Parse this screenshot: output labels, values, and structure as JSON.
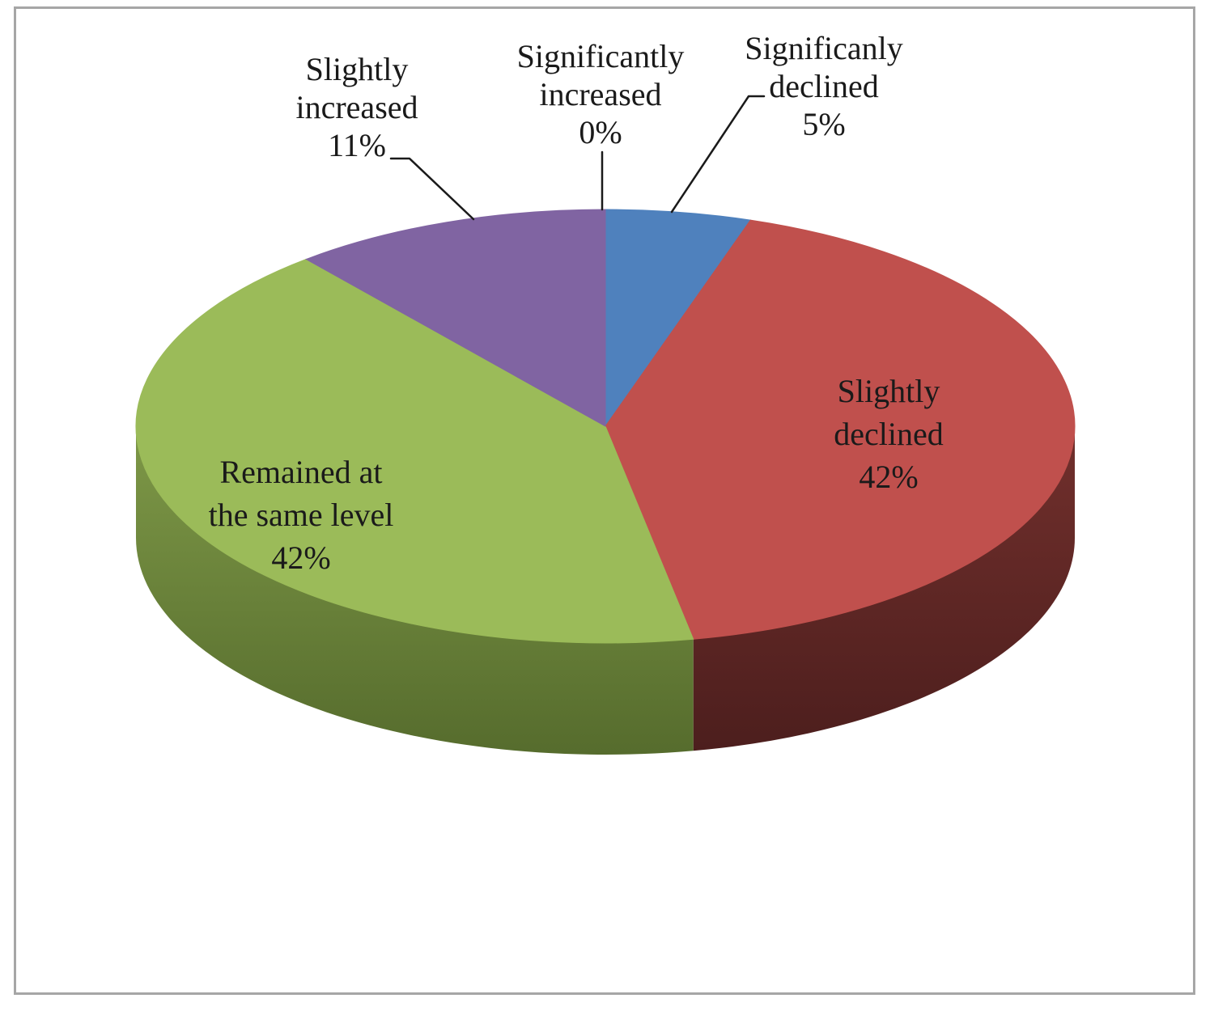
{
  "chart_data": {
    "type": "pie",
    "style": "3d",
    "title": "",
    "unit": "%",
    "direction": "clockwise",
    "start_angle_deg": 0,
    "legend": "none",
    "slices": [
      {
        "label": "Significanly declined",
        "value": 5,
        "color": "#4F81BD"
      },
      {
        "label": "Slightly declined",
        "value": 42,
        "color": "#C0504D",
        "side_gradient": [
          "#6E2E2B",
          "#4C1E1D"
        ]
      },
      {
        "label": "Remained at the same level",
        "value": 42,
        "color": "#9BBB59",
        "side_gradient": [
          "#7A9445",
          "#566C2D"
        ]
      },
      {
        "label": "Slightly increased",
        "value": 11,
        "color": "#8064A2"
      },
      {
        "label": "Significantly increased",
        "value": 0
      }
    ],
    "callouts": [
      {
        "lines": [
          "Slightly",
          "increased",
          "11%"
        ]
      },
      {
        "lines": [
          "Significantly",
          "increased",
          "0%"
        ]
      },
      {
        "lines": [
          "Significanly",
          "declined",
          "5%"
        ]
      }
    ],
    "inner_labels": [
      {
        "lines": [
          "Slightly",
          "declined",
          "42%"
        ]
      },
      {
        "lines": [
          "Remained at",
          "the same level",
          "42%"
        ]
      }
    ]
  },
  "colors": {
    "background": "#FFFFFF",
    "border": "#A6A6A6",
    "text": "#1A1A1A",
    "leader_line": "#1A1A1A"
  }
}
